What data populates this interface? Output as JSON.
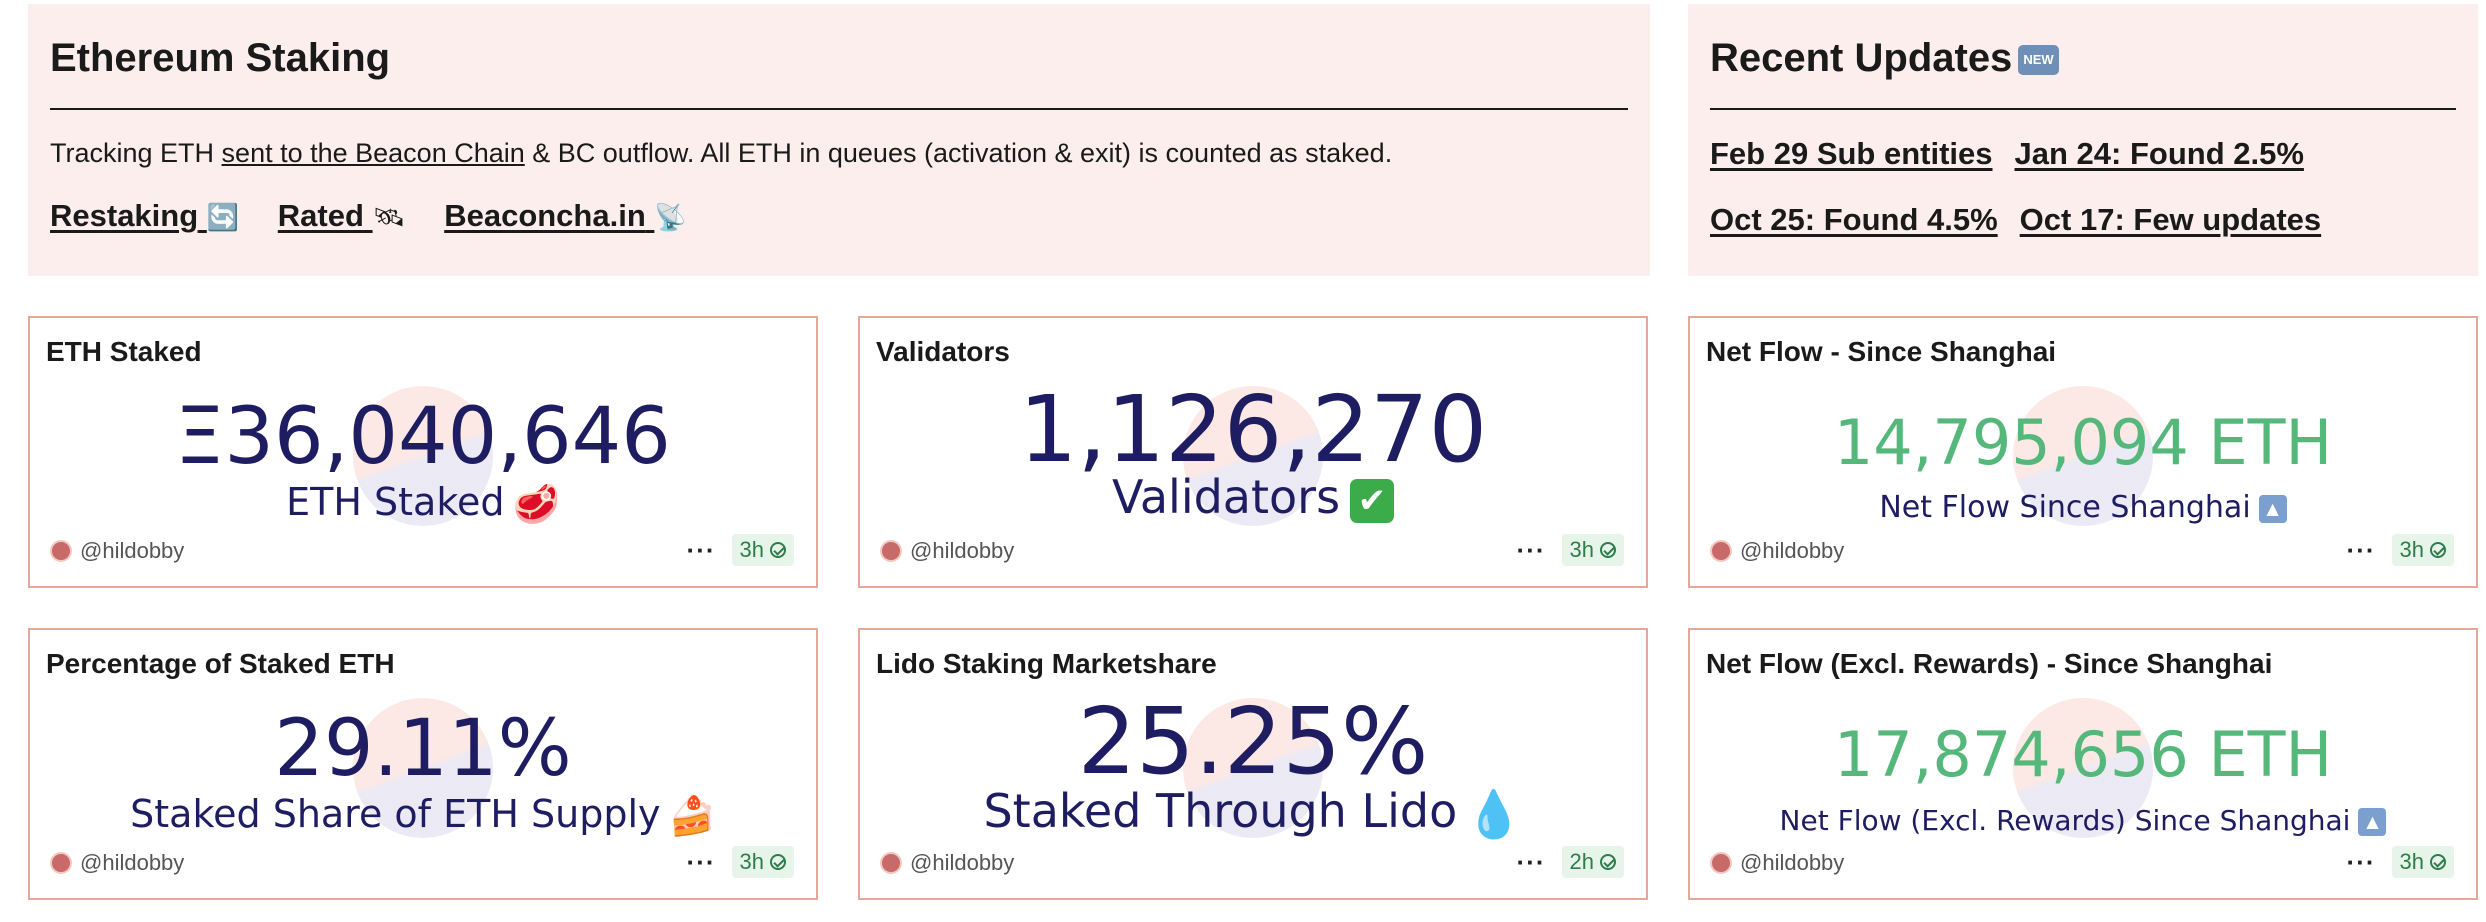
{
  "intro": {
    "title": "Ethereum Staking",
    "text_before": "Tracking ETH ",
    "link_text": "sent to the Beacon Chain",
    "text_after": " & BC outflow. All ETH in queues (activation & exit) is counted as staked.",
    "links": [
      {
        "label": "Restaking",
        "icon": "🔄"
      },
      {
        "label": "Rated",
        "icon": "🛰"
      },
      {
        "label": "Beaconcha.in",
        "icon": "📡"
      }
    ]
  },
  "updates": {
    "title": "Recent Updates",
    "badge": "NEW",
    "rows": [
      [
        "Feb 29 Sub entities",
        "Jan 24: Found 2.5%"
      ],
      [
        "Oct 25: Found 4.5%",
        "Oct 17: Few updates"
      ]
    ]
  },
  "cards": [
    {
      "title": "ETH Staked",
      "value": "Ξ36,040,646",
      "label": "ETH Staked",
      "label_icon": "🥩",
      "author": "@hildobby",
      "age": "3h"
    },
    {
      "title": "Validators",
      "value": "1,126,270",
      "label": "Validators",
      "label_icon": "✔",
      "author": "@hildobby",
      "age": "3h"
    },
    {
      "title": "Net Flow - Since Shanghai",
      "value": "14,795,094 ETH",
      "label": "Net Flow Since Shanghai",
      "label_icon": "▲",
      "author": "@hildobby",
      "age": "3h"
    },
    {
      "title": "Percentage of Staked ETH",
      "value": "29.11%",
      "label": "Staked Share of ETH Supply",
      "label_icon": "🍰",
      "author": "@hildobby",
      "age": "3h"
    },
    {
      "title": "Lido Staking Marketshare",
      "value": "25.25%",
      "label": "Staked Through Lido",
      "label_icon": "💧",
      "author": "@hildobby",
      "age": "2h"
    },
    {
      "title": "Net Flow (Excl. Rewards) - Since Shanghai",
      "value": "17,874,656 ETH",
      "label": "Net Flow (Excl. Rewards) Since Shanghai",
      "label_icon": "▲",
      "author": "@hildobby",
      "age": "3h"
    }
  ],
  "colors": {
    "panel_bg": "#fbeeec",
    "card_border": "#e8a79b",
    "value_navy": "#1f1d62",
    "value_green": "#55b77a"
  }
}
